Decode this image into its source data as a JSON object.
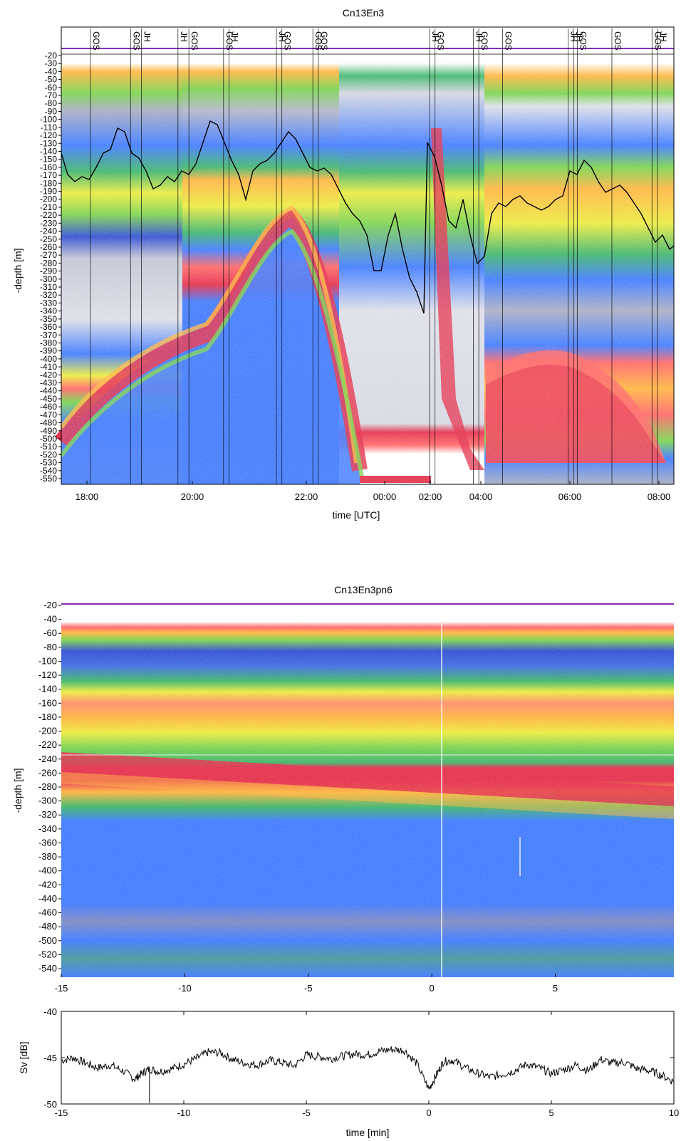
{
  "chart_data": [
    {
      "id": "echogram1",
      "type": "heatmap",
      "title": "Cn13En3",
      "xlabel": "time [UTC]",
      "ylabel": "-depth [m]",
      "x_ticks": [
        "18:00",
        "20:00",
        "22:00",
        "00:00",
        "02:00",
        "04:00",
        "06:00",
        "08:00"
      ],
      "y_ticks": [
        "-20",
        "-30",
        "-40",
        "-50",
        "-60",
        "-70",
        "-80",
        "-90",
        "-100",
        "-110",
        "-120",
        "-130",
        "-140",
        "-150",
        "-160",
        "-170",
        "-180",
        "-190",
        "-200",
        "-210",
        "-220",
        "-230",
        "-240",
        "-250",
        "-260",
        "-270",
        "-280",
        "-290",
        "-300",
        "-310",
        "-320",
        "-330",
        "-340",
        "-350",
        "-360",
        "-370",
        "-380",
        "-390",
        "-400",
        "-410",
        "-420",
        "-430",
        "-440",
        "-450",
        "-460",
        "-470",
        "-480",
        "-490",
        "-500",
        "-510",
        "-520",
        "-530",
        "-540",
        "-550"
      ],
      "ylim": [
        -555,
        -15
      ],
      "event_labels": [
        "GOS",
        "GOS",
        "JH",
        "JH",
        "GOS",
        "GOS",
        "JH",
        "JH",
        "GOS",
        "GOS",
        "GOS",
        "JH",
        "GOS",
        "JH",
        "GOS",
        "GOS",
        "JH",
        "JH",
        "GOS",
        "GOS",
        "JH",
        "GOS"
      ],
      "event_times": [
        18.2,
        19.3,
        19.6,
        20.6,
        20.9,
        21.85,
        22.0,
        23.3,
        23.45,
        24.3,
        24.45,
        27.5,
        27.65,
        28.7,
        28.85,
        29.5,
        31.3,
        31.45,
        31.55,
        33.6,
        33.75,
        32.5
      ],
      "colors": [
        "#ffffff",
        "#9aa0b8",
        "#1133cc",
        "#2266ff",
        "#22aa55",
        "#66cc33",
        "#e8e820",
        "#ffaa22",
        "#ff5050",
        "#e01030"
      ]
    },
    {
      "id": "echogram2",
      "type": "heatmap",
      "title": "Cn13En3pn6",
      "xlabel": "",
      "ylabel": "-depth [m]",
      "x_ticks": [
        "-15",
        "-10",
        "-5",
        "0",
        "5"
      ],
      "y_ticks": [
        "-20",
        "-40",
        "-60",
        "-80",
        "-100",
        "-120",
        "-140",
        "-160",
        "-180",
        "-200",
        "-220",
        "-240",
        "-260",
        "-280",
        "-300",
        "-320",
        "-340",
        "-360",
        "-380",
        "-400",
        "-420",
        "-440",
        "-460",
        "-480",
        "-500",
        "-520",
        "-540"
      ],
      "ylim": [
        -550,
        -15
      ],
      "xlim": [
        -15,
        9.8
      ]
    },
    {
      "id": "svline",
      "type": "line",
      "title": "",
      "xlabel": "time [min]",
      "ylabel": "Sv [dB]",
      "x_ticks": [
        "-15",
        "-10",
        "-5",
        "0",
        "5",
        "10"
      ],
      "y_ticks": [
        "-40",
        "-45",
        "-50"
      ],
      "xlim": [
        -15,
        10
      ],
      "ylim": [
        -50,
        -40
      ],
      "series": [
        {
          "x": [
            -15,
            -14.5,
            -14,
            -13.5,
            -13,
            -12.5,
            -12,
            -11.7,
            -11.4,
            -11,
            -10.5,
            -10,
            -9.5,
            -9,
            -8.5,
            -8,
            -7.5,
            -7,
            -6.5,
            -6,
            -5.5,
            -5,
            -4.5,
            -4,
            -3.5,
            -3,
            -2.5,
            -2,
            -1.5,
            -1,
            -0.5,
            0,
            0.3,
            0.6,
            1,
            1.5,
            2,
            2.5,
            3,
            3.5,
            4,
            4.5,
            5,
            5.5,
            6,
            6.5,
            7,
            7.5,
            8,
            8.5,
            9,
            9.5,
            10
          ],
          "values": [
            -45.3,
            -45,
            -45.6,
            -46.1,
            -45.8,
            -46.4,
            -47.3,
            -46.7,
            -46.2,
            -46.5,
            -46.2,
            -45.7,
            -45.1,
            -44.4,
            -44.5,
            -45.2,
            -45.6,
            -45.8,
            -45.3,
            -45.5,
            -45.9,
            -44.7,
            -44.9,
            -45.1,
            -44.8,
            -44.6,
            -44.7,
            -44.3,
            -44.1,
            -44.2,
            -45.6,
            -48.4,
            -46.9,
            -45.4,
            -45.3,
            -46.1,
            -46.7,
            -47.1,
            -46.8,
            -46.4,
            -45.7,
            -46.1,
            -46.7,
            -46.3,
            -45.8,
            -46.4,
            -45.2,
            -45.6,
            -45.5,
            -46.2,
            -46.4,
            -46.9,
            -47.6
          ]
        }
      ]
    }
  ]
}
